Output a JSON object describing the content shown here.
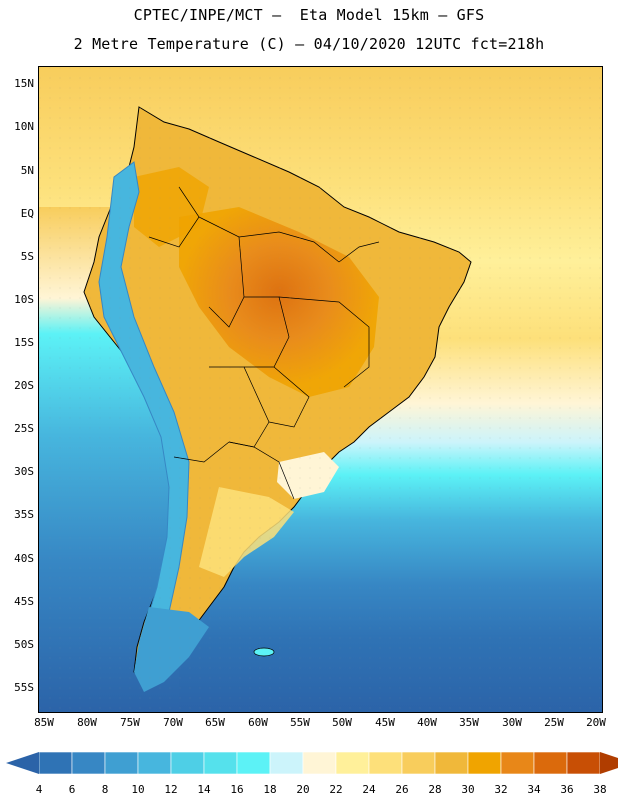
{
  "header": {
    "title_line1": "CPTEC/INPE/MCT –  Eta Model 15km – GFS",
    "title_line2": "2 Metre Temperature (C) – 04/10/2020 12UTC fct=218h"
  },
  "map": {
    "region": "South America",
    "variable": "2 Metre Temperature",
    "units": "C",
    "lat_labels": [
      "15N",
      "10N",
      "5N",
      "EQ",
      "5S",
      "10S",
      "15S",
      "20S",
      "25S",
      "30S",
      "35S",
      "40S",
      "45S",
      "50S",
      "55S"
    ],
    "lon_labels": [
      "85W",
      "80W",
      "75W",
      "70W",
      "65W",
      "60W",
      "55W",
      "50W",
      "45W",
      "40W",
      "35W",
      "30W",
      "25W",
      "20W"
    ]
  },
  "colorbar": {
    "ticks": [
      "4",
      "6",
      "8",
      "10",
      "12",
      "14",
      "16",
      "18",
      "20",
      "22",
      "24",
      "26",
      "28",
      "30",
      "32",
      "34",
      "36",
      "38"
    ],
    "colors": [
      "#2b63a8",
      "#2f73b5",
      "#3787c4",
      "#3f9fd2",
      "#47b6de",
      "#4ecfe6",
      "#55e1ec",
      "#5cf2f6",
      "#ccf4fb",
      "#fff5d6",
      "#fff09a",
      "#fde07a",
      "#f8cd5c",
      "#f0b83a",
      "#f0a400",
      "#e88718",
      "#db6a0c",
      "#c84f05",
      "#b03d00"
    ]
  }
}
